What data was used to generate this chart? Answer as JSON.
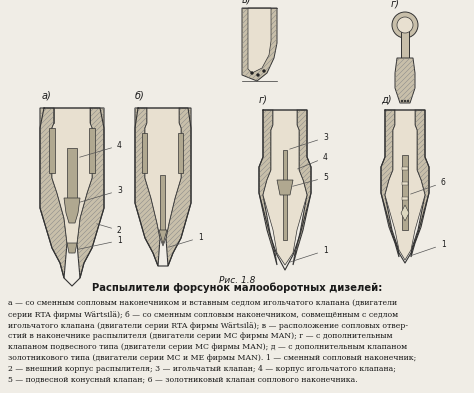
{
  "figure_title": "Рис. 1.8",
  "main_title": "Распылители форсунок малооборотных дизелей:",
  "caption_lines": [
    "а — со сменным сопловым наконечником и вставным седлом игольчатого клапана (двигатели",
    "серии RTA фирмы Wärtsilä); б — со сменным сопловым наконечником, совмещённым с седлом",
    "игольчатого клапана (двигатели серии RTA фирмы Wärtsilä); в — расположение сопловых отвер-",
    "стий в наконечнике распылителя (двигатели серии МС фирмы MAN); г — с дополнительным",
    "клапаном подвесного типа (двигатели серии МС фирмы MAN); д — с дополнительным клапаном",
    "золотникового типа (двигатели серии МС и МЕ фирмы MAN). 1 — сменный сопловый наконечник;",
    "2 — внешний корпус распылителя; 3 — игольчатый клапан; 4 — корпус игольчатого клапана;",
    "5 — подвесной конусный клапан; 6 — золотниковый клапан соплового наконечника."
  ],
  "bg_color": "#f0ede6",
  "text_color": "#1a1a1a",
  "figsize": [
    4.74,
    3.93
  ],
  "dpi": 100,
  "diagram_labels": {
    "a": "а)",
    "b": "б)",
    "v": "в)",
    "g": "г)",
    "d": "д)"
  }
}
